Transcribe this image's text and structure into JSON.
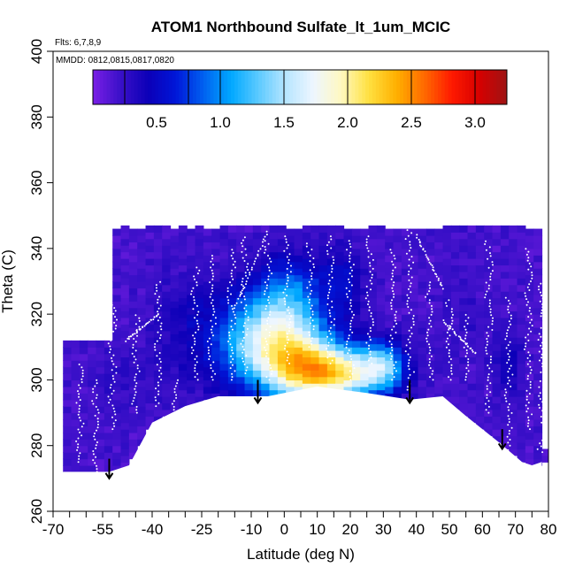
{
  "chart_data": {
    "type": "heatmap",
    "title": "ATOM1 Northbound Sulfate_lt_1um_MCIC",
    "flights_note": "Flts: 6,7,8,9",
    "mmdd_note": "MMDD: 0812,0815,0817,0820",
    "xlabel": "Latitude (deg N)",
    "ylabel": "Theta (C)",
    "xlim": [
      -70,
      80
    ],
    "ylim": [
      260,
      400
    ],
    "x_ticks": [
      -70,
      -55,
      -40,
      -25,
      -10,
      0,
      10,
      20,
      30,
      40,
      50,
      60,
      70,
      80
    ],
    "x_tick_labels": [
      "-70",
      "-55",
      "-40",
      "-25",
      "-10",
      "0",
      "10",
      "20",
      "30",
      "40",
      "50",
      "60",
      "70",
      "80"
    ],
    "x_minor_ticks": [
      -65,
      -60,
      -50,
      -45,
      -35,
      -30,
      -20,
      -15,
      -5,
      5,
      15,
      25,
      35,
      45,
      55,
      65,
      75
    ],
    "y_ticks": [
      260,
      280,
      300,
      320,
      340,
      360,
      380,
      400
    ],
    "y_tick_labels": [
      "260",
      "280",
      "300",
      "320",
      "340",
      "360",
      "380",
      "400"
    ],
    "colorbar": {
      "range": [
        0,
        3.25
      ],
      "ticks": [
        0.5,
        1.0,
        1.5,
        2.0,
        2.5,
        3.0
      ],
      "tick_labels": [
        "0.5",
        "1.0",
        "1.5",
        "2.0",
        "2.5",
        "3.0"
      ],
      "colors": [
        "#7a1fe6",
        "#3a10c8",
        "#0c00b8",
        "#0016d8",
        "#0060f0",
        "#00a8ff",
        "#5ccaff",
        "#b8e6ff",
        "#eef6ff",
        "#fff8c0",
        "#ffe040",
        "#ffb000",
        "#ff6a00",
        "#ff1a00",
        "#d60000",
        "#9e1414"
      ]
    },
    "data_region": {
      "theta_top": 346,
      "upper_lat_start": -53,
      "upper_lat_end": 78,
      "left_column": {
        "lat_start": -67,
        "lat_end": -53,
        "theta_top": 312
      },
      "bottom_boundary": [
        [
          -67,
          272
        ],
        [
          -53,
          272
        ],
        [
          -47,
          274
        ],
        [
          -40,
          287
        ],
        [
          -30,
          292
        ],
        [
          -20,
          295
        ],
        [
          -5,
          295
        ],
        [
          10,
          298
        ],
        [
          25,
          296
        ],
        [
          38,
          294
        ],
        [
          48,
          295
        ],
        [
          55,
          289
        ],
        [
          65,
          281
        ],
        [
          72,
          275
        ],
        [
          75,
          274
        ],
        [
          78,
          275
        ]
      ],
      "right_notch": {
        "lat": 80,
        "theta_top": 278,
        "theta_bottom": 275
      },
      "hotspots": [
        {
          "lat": -8,
          "theta": 312,
          "rlat": 13,
          "rtheta": 14,
          "value": 1.35
        },
        {
          "lat": 5,
          "theta": 305,
          "rlat": 12,
          "rtheta": 12,
          "value": 1.6
        },
        {
          "lat": 18,
          "theta": 302,
          "rlat": 14,
          "rtheta": 8,
          "value": 1.7
        },
        {
          "lat": 2,
          "theta": 325,
          "rlat": 10,
          "rtheta": 12,
          "value": 0.9
        },
        {
          "lat": 30,
          "theta": 305,
          "rlat": 6,
          "rtheta": 7,
          "value": 0.95
        },
        {
          "lat": -30,
          "theta": 315,
          "rlat": 10,
          "rtheta": 18,
          "value": 0.38
        },
        {
          "lat": 55,
          "theta": 318,
          "rlat": 8,
          "rtheta": 12,
          "value": 0.25
        },
        {
          "lat": 68,
          "theta": 305,
          "rlat": 4,
          "rtheta": 10,
          "value": 0.45
        },
        {
          "lat": 18,
          "theta": 330,
          "rlat": 6,
          "rtheta": 10,
          "value": 0.55
        },
        {
          "lat": -50,
          "theta": 300,
          "rlat": 8,
          "rtheta": 10,
          "value": 0.28
        }
      ],
      "base_value": 0.18,
      "profiles": [
        {
          "lat": -62,
          "theta_top": 305,
          "theta_bottom": 275
        },
        {
          "lat": -57,
          "theta_top": 300,
          "theta_bottom": 272
        },
        {
          "lat": -52,
          "theta_top": 325,
          "theta_bottom": 285
        },
        {
          "lat": -45,
          "theta_top": 320,
          "theta_bottom": 290
        },
        {
          "lat": -38,
          "theta_top": 330,
          "theta_bottom": 292
        },
        {
          "lat": -33,
          "theta_top": 300,
          "theta_bottom": 290
        },
        {
          "lat": -27,
          "theta_top": 335,
          "theta_bottom": 300
        },
        {
          "lat": -22,
          "theta_top": 338,
          "theta_bottom": 300
        },
        {
          "lat": -16,
          "theta_top": 340,
          "theta_bottom": 300
        },
        {
          "lat": -12,
          "theta_top": 344,
          "theta_bottom": 302
        },
        {
          "lat": -5,
          "theta_top": 343,
          "theta_bottom": 300
        },
        {
          "lat": 1,
          "theta_top": 344,
          "theta_bottom": 305
        },
        {
          "lat": 8,
          "theta_top": 342,
          "theta_bottom": 310
        },
        {
          "lat": 14,
          "theta_top": 344,
          "theta_bottom": 305
        },
        {
          "lat": 20,
          "theta_top": 343,
          "theta_bottom": 300
        },
        {
          "lat": 26,
          "theta_top": 344,
          "theta_bottom": 305
        },
        {
          "lat": 33,
          "theta_top": 340,
          "theta_bottom": 300
        },
        {
          "lat": 38,
          "theta_top": 348,
          "theta_bottom": 297
        },
        {
          "lat": 44,
          "theta_top": 330,
          "theta_bottom": 300
        },
        {
          "lat": 50,
          "theta_top": 325,
          "theta_bottom": 300
        },
        {
          "lat": 55,
          "theta_top": 320,
          "theta_bottom": 300
        },
        {
          "lat": 62,
          "theta_top": 343,
          "theta_bottom": 290
        },
        {
          "lat": 68,
          "theta_top": 325,
          "theta_bottom": 280
        },
        {
          "lat": 74,
          "theta_top": 340,
          "theta_bottom": 285
        },
        {
          "lat": 78,
          "theta_top": 330,
          "theta_bottom": 278
        }
      ],
      "sloped_tracks": [
        {
          "lat1": -48,
          "theta1": 312,
          "lat2": -38,
          "theta2": 320
        },
        {
          "lat1": -15,
          "theta1": 322,
          "lat2": -5,
          "theta2": 345
        },
        {
          "lat1": 40,
          "theta1": 344,
          "lat2": 48,
          "theta2": 328
        },
        {
          "lat1": 48,
          "theta1": 318,
          "lat2": 58,
          "theta2": 308
        }
      ]
    },
    "arrows": [
      {
        "lat": -53,
        "theta_top": 276,
        "theta_bottom": 270
      },
      {
        "lat": -8,
        "theta_top": 300,
        "theta_bottom": 293
      },
      {
        "lat": 38,
        "theta_top": 300,
        "theta_bottom": 293
      },
      {
        "lat": 66,
        "theta_top": 285,
        "theta_bottom": 279
      }
    ]
  }
}
